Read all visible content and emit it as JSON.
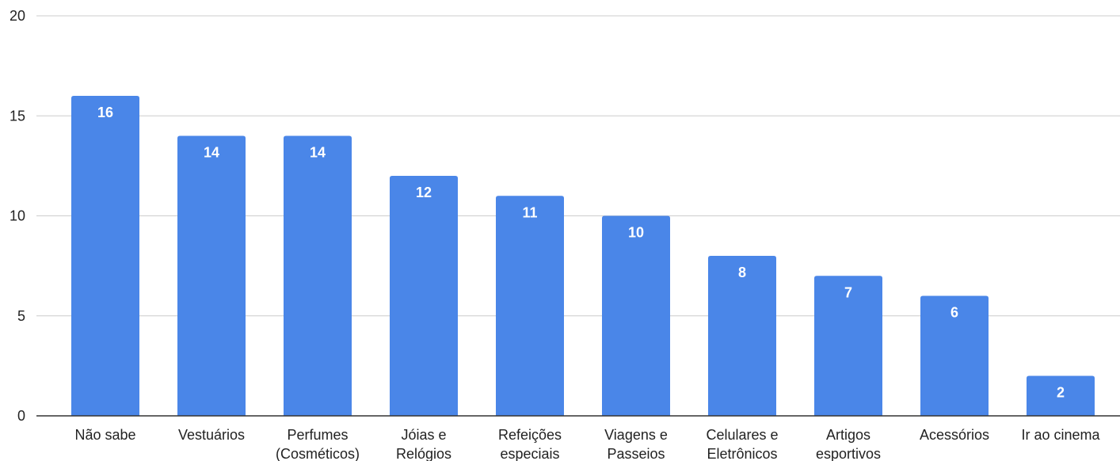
{
  "chart_data": {
    "type": "bar",
    "categories": [
      "Não sabe",
      "Vestuários",
      "Perfumes (Cosméticos)",
      "Jóias e Relógios",
      "Refeições especiais",
      "Viagens e Passeios",
      "Celulares e Eletrônicos",
      "Artigos esportivos",
      "Acessórios",
      "Ir ao cinema"
    ],
    "category_lines": [
      [
        "Não sabe"
      ],
      [
        "Vestuários"
      ],
      [
        "Perfumes",
        "(Cosméticos)"
      ],
      [
        "Jóias e",
        "Relógios"
      ],
      [
        "Refeições",
        "especiais"
      ],
      [
        "Viagens e",
        "Passeios"
      ],
      [
        "Celulares e",
        "Eletrônicos"
      ],
      [
        "Artigos",
        "esportivos"
      ],
      [
        "Acessórios"
      ],
      [
        "Ir ao cinema"
      ]
    ],
    "values": [
      16,
      14,
      14,
      12,
      11,
      10,
      8,
      7,
      6,
      2
    ],
    "title": "",
    "xlabel": "",
    "ylabel": "",
    "ylim": [
      0,
      20
    ],
    "yticks": [
      0,
      5,
      10,
      15,
      20
    ],
    "grid": true,
    "legend": "none",
    "data_labels": "inside-top",
    "colors": {
      "bar": "#4a86e8",
      "grid": "#cccccc",
      "axis": "#333333",
      "text": "#222222",
      "data_label": "#ffffff"
    }
  }
}
